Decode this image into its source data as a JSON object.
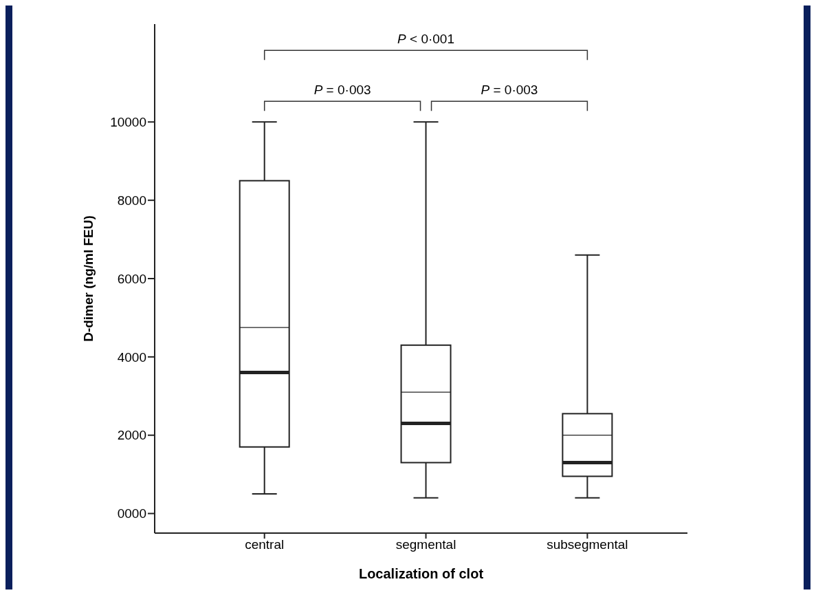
{
  "chart_data": {
    "type": "box",
    "xlabel": "Localization of clot",
    "ylabel": "D-dimer (ng/ml FEU)",
    "categories": [
      "central",
      "segmental",
      "subsegmental"
    ],
    "boxes": [
      {
        "low": 500,
        "q1": 1700,
        "median": 3600,
        "q3": 8500,
        "high": 10000,
        "mean": 4750
      },
      {
        "low": 400,
        "q1": 1300,
        "median": 2300,
        "q3": 4300,
        "high": 10000,
        "mean": 3100
      },
      {
        "low": 400,
        "q1": 950,
        "median": 1300,
        "q3": 2550,
        "high": 6600,
        "mean": 2000
      }
    ],
    "ylim": [
      -500,
      12500
    ],
    "yticks": [
      {
        "value": 0,
        "label": "0000"
      },
      2000,
      4000,
      6000,
      8000,
      10000
    ],
    "grid": false,
    "annotations": [
      "P < 0·001",
      "P = 0·003",
      "P = 0·003"
    ]
  }
}
